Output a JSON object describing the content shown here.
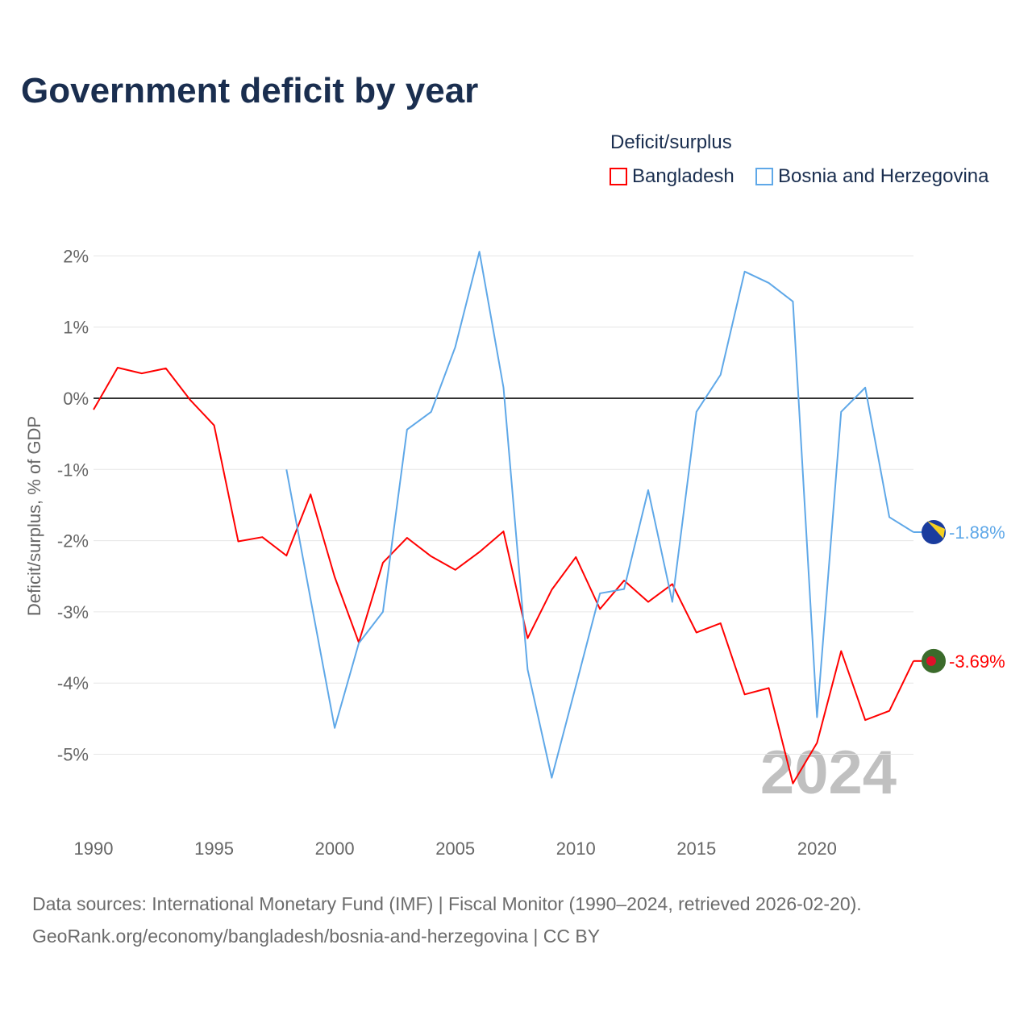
{
  "chart_data": {
    "type": "line",
    "title": "Government deficit by year",
    "xlabel": "",
    "ylabel": "Deficit/surplus, % of GDP",
    "legend_title": "Deficit/surplus",
    "legend_placement": "top-right",
    "xlim": [
      1990,
      2024
    ],
    "ylim": [
      -6,
      2.3
    ],
    "x_ticks": [
      1990,
      1995,
      2000,
      2005,
      2010,
      2015,
      2020
    ],
    "x_tick_labels": [
      "1990",
      "1995",
      "2000",
      "2005",
      "2010",
      "2015",
      "2020"
    ],
    "y_ticks": [
      2,
      1,
      0,
      -1,
      -2,
      -3,
      -4,
      -5
    ],
    "y_tick_labels": [
      "2%",
      "1%",
      "0%",
      "-1%",
      "-2%",
      "-3%",
      "-4%",
      "-5%"
    ],
    "grid": true,
    "watermark_year": "2024",
    "series": [
      {
        "name": "Bangladesh",
        "color": "#ff0000",
        "end_label": "-3.69%",
        "x": [
          1990,
          1991,
          1992,
          1993,
          1994,
          1995,
          1996,
          1997,
          1998,
          1999,
          2000,
          2001,
          2002,
          2003,
          2004,
          2005,
          2006,
          2007,
          2008,
          2009,
          2010,
          2011,
          2012,
          2013,
          2014,
          2015,
          2016,
          2017,
          2018,
          2019,
          2020,
          2021,
          2022,
          2023,
          2024
        ],
        "values": [
          -0.16,
          0.43,
          0.35,
          0.42,
          -0.02,
          -0.38,
          -2.01,
          -1.95,
          -2.21,
          -1.35,
          -2.51,
          -3.43,
          -2.31,
          -1.96,
          -2.22,
          -2.41,
          -2.16,
          -1.87,
          -3.37,
          -2.69,
          -2.23,
          -2.96,
          -2.56,
          -2.86,
          -2.61,
          -3.29,
          -3.16,
          -4.16,
          -4.07,
          -5.41,
          -4.84,
          -3.55,
          -4.52,
          -4.39,
          -3.69
        ]
      },
      {
        "name": "Bosnia and Herzegovina",
        "color": "#5fa8e8",
        "end_label": "-1.88%",
        "x": [
          1998,
          1999,
          2000,
          2001,
          2002,
          2003,
          2004,
          2005,
          2006,
          2007,
          2008,
          2009,
          2010,
          2011,
          2012,
          2013,
          2014,
          2015,
          2016,
          2017,
          2018,
          2019,
          2020,
          2021,
          2022,
          2023,
          2024
        ],
        "values": [
          -1.0,
          -2.82,
          -4.63,
          -3.44,
          -3.0,
          -0.44,
          -0.19,
          0.72,
          2.06,
          0.15,
          -3.81,
          -5.33,
          -4.04,
          -2.74,
          -2.68,
          -1.29,
          -2.86,
          -0.19,
          0.33,
          1.78,
          1.62,
          1.36,
          -4.48,
          -0.19,
          0.15,
          -1.67,
          -1.88
        ]
      }
    ]
  },
  "footer": {
    "sources": "Data sources: International Monetary Fund (IMF) | Fiscal Monitor (1990–2024, retrieved 2026-02-20).",
    "attribution": "GeoRank.org/economy/bangladesh/bosnia-and-herzegovina | CC BY"
  }
}
